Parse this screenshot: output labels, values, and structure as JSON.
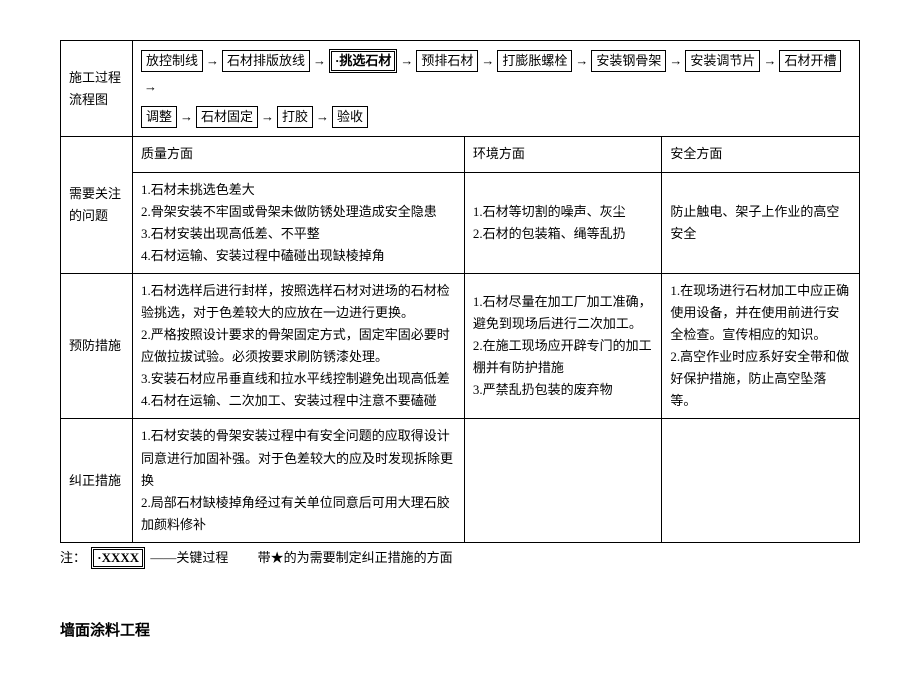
{
  "row_labels": {
    "flow": "施工过程\n流程图",
    "issues": "需要关注\n的问题",
    "prevent": "预防措施",
    "correct": "纠正措施"
  },
  "column_headers": {
    "quality": "质量方面",
    "environment": "环境方面",
    "safety": "安全方面"
  },
  "flow": {
    "steps1": [
      "放控制线",
      "石材排版放线",
      "·挑选石材",
      "预排石材",
      "打膨胀螺栓",
      "安装钢骨架",
      "安装调节片",
      "石材开槽"
    ],
    "steps2": [
      "调整",
      "石材固定",
      "打胶",
      "验收"
    ],
    "key_step": "·挑选石材",
    "arrow": "→"
  },
  "issues": {
    "quality": [
      "1.石材未挑选色差大",
      "2.骨架安装不牢固或骨架未做防锈处理造成安全隐患",
      "3.石材安装出现高低差、不平整",
      "4.石材运输、安装过程中磕碰出现缺棱掉角"
    ],
    "environment": [
      "1.石材等切割的噪声、灰尘",
      "2.石材的包装箱、绳等乱扔"
    ],
    "safety": [
      "防止触电、架子上作业的高空安全"
    ]
  },
  "prevent": {
    "quality": [
      "1.石材选样后进行封样，按照选样石材对进场的石材检验挑选，对于色差较大的应放在一边进行更换。",
      "2.严格按照设计要求的骨架固定方式，固定牢固必要时应做拉拔试验。必须按要求刷防锈漆处理。",
      "3.安装石材应吊垂直线和拉水平线控制避免出现高低差",
      "4.石材在运输、二次加工、安装过程中注意不要磕碰"
    ],
    "environment": [
      "1.石材尽量在加工厂加工准确，避免到现场后进行二次加工。",
      "2.在施工现场应开辟专门的加工棚并有防护措施",
      "3.严禁乱扔包装的废弃物"
    ],
    "safety": [
      "1.在现场进行石材加工中应正确使用设备，并在使用前进行安全检查。宣传相应的知识。",
      "2.高空作业时应系好安全带和做好保护措施，防止高空坠落等。"
    ]
  },
  "correct": {
    "quality": [
      "1.石材安装的骨架安装过程中有安全问题的应取得设计同意进行加固补强。对于色差较大的应及时发现拆除更换",
      "2.局部石材缺棱掉角经过有关单位同意后可用大理石胶加颜料修补"
    ]
  },
  "note": {
    "prefix": "注：",
    "key_sample": "·XXXX",
    "key_desc": "——关键过程",
    "star_desc": "　　带★的为需要制定纠正措施的方面"
  },
  "section_title": "墙面涂料工程"
}
